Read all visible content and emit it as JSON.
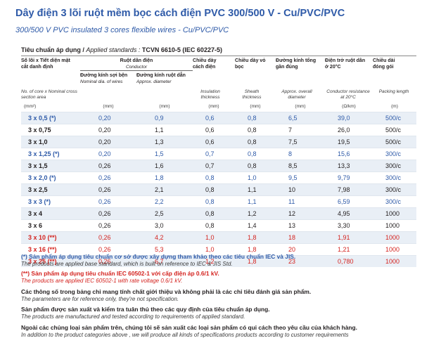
{
  "title": "Dây điện 3 lõi ruột mềm bọc cách điện PVC 300/500 V - Cu/PVC/PVC",
  "subtitle": "300/500 V PVC insulated 3 cores flexible wires - Cu/PVC/PVC",
  "standard": {
    "label_vi": "Tiêu chuẩn áp dụng / ",
    "label_en": "Applied standards : ",
    "value": "TCVN 6610-5 (IEC 60227-5)"
  },
  "header": {
    "c1_vi": "Số lõi x Tiết diện mặt cắt danh định",
    "c1_en": "No. of core x Nominal cross section area",
    "c1_unit": "(mm²)",
    "conductor_vi": "Ruột dẫn điện",
    "conductor_en": "Conductor",
    "c2_vi": "Đường kính sợi bện",
    "c2_en": "Nominal dia. of wires",
    "c2_unit": "(mm)",
    "c3_vi": "Đường kính ruột dẫn",
    "c3_en": "Approx. diameter",
    "c3_unit": "(mm)",
    "c4_vi": "Chiều dày cách điện",
    "c4_en": "Insulation thickness",
    "c4_unit": "(mm)",
    "c5_vi": "Chiều dày vỏ bọc",
    "c5_en": "Sheath thickness",
    "c5_unit": "(mm)",
    "c6_vi": "Đường kính tổng gần đúng",
    "c6_en": "Approx. overall diameter",
    "c6_unit": "(mm)",
    "c7_vi": "Điện trở ruột dẫn ở 20°C",
    "c7_en": "Conductor resistance at 20°C",
    "c7_unit": "(Ω/km)",
    "c8_vi": "Chiều dài đóng gói",
    "c8_en": "Packing length",
    "c8_unit": "(m)"
  },
  "rows": [
    {
      "size": "3 x 0,5 (*)",
      "wire": "0,20",
      "dia": "0,9",
      "ins": "0,6",
      "sheath": "0,8",
      "overall": "6,5",
      "res": "39,0",
      "pack": "500/c",
      "color": "blue"
    },
    {
      "size": "3 x 0,75",
      "wire": "0,20",
      "dia": "1,1",
      "ins": "0,6",
      "sheath": "0,8",
      "overall": "7",
      "res": "26,0",
      "pack": "500/c",
      "color": "black"
    },
    {
      "size": "3 x 1,0",
      "wire": "0,20",
      "dia": "1,3",
      "ins": "0,6",
      "sheath": "0,8",
      "overall": "7,5",
      "res": "19,5",
      "pack": "500/c",
      "color": "black"
    },
    {
      "size": "3 x 1,25 (*)",
      "wire": "0,20",
      "dia": "1,5",
      "ins": "0,7",
      "sheath": "0,8",
      "overall": "8",
      "res": "15,6",
      "pack": "300/c",
      "color": "blue"
    },
    {
      "size": "3 x 1,5",
      "wire": "0,26",
      "dia": "1,6",
      "ins": "0,7",
      "sheath": "0,8",
      "overall": "8,5",
      "res": "13,3",
      "pack": "300/c",
      "color": "black"
    },
    {
      "size": "3 x 2,0 (*)",
      "wire": "0,26",
      "dia": "1,8",
      "ins": "0,8",
      "sheath": "1,0",
      "overall": "9,5",
      "res": "9,79",
      "pack": "300/c",
      "color": "blue"
    },
    {
      "size": "3 x 2,5",
      "wire": "0,26",
      "dia": "2,1",
      "ins": "0,8",
      "sheath": "1,1",
      "overall": "10",
      "res": "7,98",
      "pack": "300/c",
      "color": "black"
    },
    {
      "size": "3 x 3 (*)",
      "wire": "0,26",
      "dia": "2,2",
      "ins": "0,8",
      "sheath": "1,1",
      "overall": "11",
      "res": "6,59",
      "pack": "300/c",
      "color": "blue"
    },
    {
      "size": "3 x 4",
      "wire": "0,26",
      "dia": "2,5",
      "ins": "0,8",
      "sheath": "1,2",
      "overall": "12",
      "res": "4,95",
      "pack": "1000",
      "color": "black"
    },
    {
      "size": "3 x 6",
      "wire": "0,26",
      "dia": "3,0",
      "ins": "0,8",
      "sheath": "1,4",
      "overall": "13",
      "res": "3,30",
      "pack": "1000",
      "color": "black"
    },
    {
      "size": "3 x 10 (**)",
      "wire": "0,26",
      "dia": "4,2",
      "ins": "1,0",
      "sheath": "1,8",
      "overall": "18",
      "res": "1,91",
      "pack": "1000",
      "color": "red"
    },
    {
      "size": "3 x 16 (**)",
      "wire": "0,26",
      "dia": "5,3",
      "ins": "1,0",
      "sheath": "1,8",
      "overall": "20",
      "res": "1,21",
      "pack": "1000",
      "color": "red"
    },
    {
      "size": "3 x 25 (**)",
      "wire": "0,26",
      "dia": "6,7",
      "ins": "1,2",
      "sheath": "1,8",
      "overall": "23",
      "res": "0,780",
      "pack": "1000",
      "color": "red"
    }
  ],
  "notes": {
    "n1_vi": "(*) Sản phẩm áp dụng tiêu chuẩn cơ sở được xây dựng tham khảo theo các tiêu chuẩn IEC và JIS.",
    "n1_en": "The products are applied base standard, which is built on reference to IEC & JIS Std.",
    "n2_vi": "(**) Sản phẩm áp dụng tiêu chuẩn IEC 60502-1 với cấp điện áp 0.6/1 kV.",
    "n2_en": "The products are applied IEC 60502-1 with rate voltage 0.6/1 kV.",
    "n3_vi": "Các thông số trong bảng chỉ mang tính chất giới thiệu và không phải là các chỉ tiêu đánh giá sản phẩm.",
    "n3_en": "The parameters are for reference only, they're not specification.",
    "n4_vi": "Sản phẩm được sản xuất và kiểm tra tuân thủ theo các quy định của tiêu chuẩn áp dụng.",
    "n4_en": "The products are manufactured and tested according to requirements of applied standard.",
    "n5_vi": "Ngoài các chủng loại sản phẩm trên, chúng tôi sẽ sản xuất các loại sản phẩm có qui cách theo yêu cầu của khách hàng.",
    "n5_en": "In addition to the product categories above , we will produce all kinds of specifications products according to customer requirements"
  },
  "colors": {
    "blue": "#2e5aa8",
    "red": "#d4231f",
    "text": "#231f20",
    "row_alt": "#e9eff6"
  }
}
